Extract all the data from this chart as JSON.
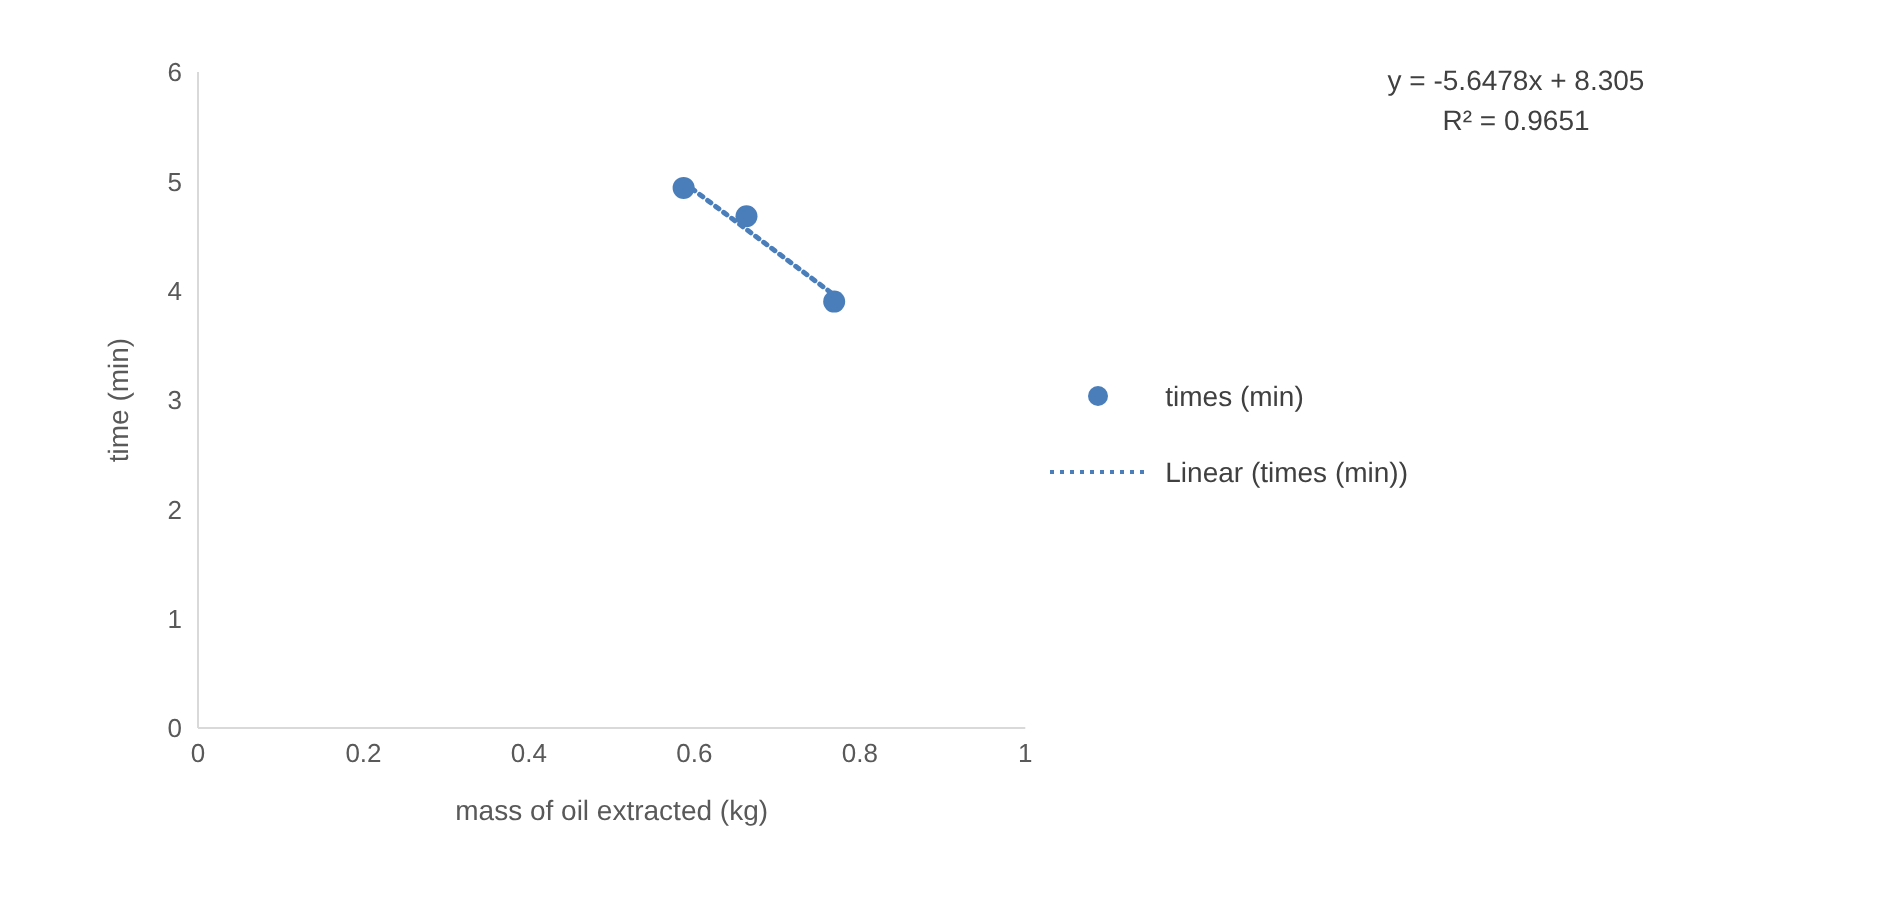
{
  "chart_data": {
    "type": "scatter",
    "xlabel": "mass of oil extracted (kg)",
    "ylabel": "time (min)",
    "annotations": [
      "y = -5.6478x + 8.305",
      "R² = 0.9651"
    ],
    "xlim": [
      0,
      1
    ],
    "xticks": [
      0,
      0.2,
      0.4,
      0.6,
      0.8,
      1
    ],
    "ylim": [
      0,
      6
    ],
    "yticks": [
      0,
      1,
      2,
      3,
      4,
      5,
      6
    ],
    "grid": false,
    "legend": "right",
    "series": [
      {
        "name": "times (min)",
        "color": "#4a7ebb",
        "marker": "circle",
        "x": [
          0.587,
          0.663,
          0.769
        ],
        "values": [
          4.94,
          4.68,
          3.9
        ]
      },
      {
        "name": "Linear (times (min))",
        "type": "line",
        "color": "#4a7ebb",
        "marker": "none",
        "line_style": "dotted",
        "x": [
          0.587,
          0.769
        ],
        "values": [
          4.99,
          3.96
        ]
      }
    ]
  }
}
